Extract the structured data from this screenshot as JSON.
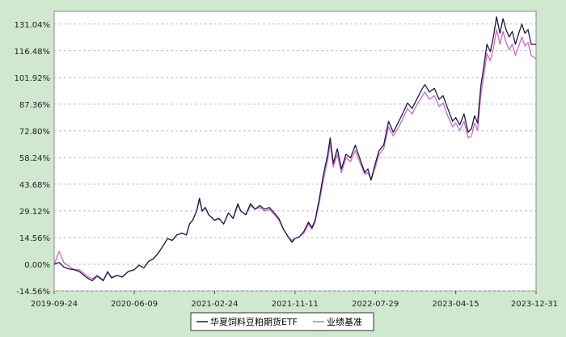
{
  "colors": {
    "background": "#cfe8cf",
    "plot_bg": "#ffffff",
    "grid": "#bdbdbd",
    "fund": "#1a1a40",
    "benchmark": "#cc66cc"
  },
  "chart_data": {
    "type": "line",
    "title": "",
    "xlabel": "",
    "ylabel": "",
    "grid": "horizontal",
    "legend_position": "bottom-right",
    "ylim": [
      -14.56,
      138
    ],
    "y_ticks": [
      "131.04%",
      "116.48%",
      "101.92%",
      "87.36%",
      "72.80%",
      "58.24%",
      "43.68%",
      "29.12%",
      "14.56%",
      "0.00%",
      "-14.56%"
    ],
    "y_tick_values": [
      131.04,
      116.48,
      101.92,
      87.36,
      72.8,
      58.24,
      43.68,
      29.12,
      14.56,
      0,
      -14.56
    ],
    "x_ticks": [
      "2019-09-24",
      "2020-06-09",
      "2021-02-24",
      "2021-11-11",
      "2022-07-29",
      "2023-04-15",
      "2023-12-31"
    ],
    "xlim": [
      "2019-09-24",
      "2023-12-31"
    ],
    "series": [
      {
        "name": "华夏饲料豆粕期货ETF",
        "color": "#1a1a40",
        "points": [
          [
            "2019-09-24",
            0.0
          ],
          [
            "2019-10-10",
            1.0
          ],
          [
            "2019-10-25",
            -1.5
          ],
          [
            "2019-11-10",
            -2.5
          ],
          [
            "2019-11-28",
            -3.0
          ],
          [
            "2019-12-15",
            -4.0
          ],
          [
            "2020-01-05",
            -7.0
          ],
          [
            "2020-01-25",
            -9.0
          ],
          [
            "2020-02-10",
            -6.5
          ],
          [
            "2020-03-01",
            -9.0
          ],
          [
            "2020-03-15",
            -4.0
          ],
          [
            "2020-03-28",
            -7.5
          ],
          [
            "2020-04-15",
            -6.0
          ],
          [
            "2020-05-01",
            -7.0
          ],
          [
            "2020-05-20",
            -4.0
          ],
          [
            "2020-06-09",
            -3.0
          ],
          [
            "2020-06-25",
            -0.5
          ],
          [
            "2020-07-10",
            -2.0
          ],
          [
            "2020-07-25",
            1.5
          ],
          [
            "2020-08-10",
            3.0
          ],
          [
            "2020-08-25",
            6.0
          ],
          [
            "2020-09-10",
            10.0
          ],
          [
            "2020-09-25",
            14.0
          ],
          [
            "2020-10-10",
            13.0
          ],
          [
            "2020-10-25",
            16.0
          ],
          [
            "2020-11-10",
            17.0
          ],
          [
            "2020-11-25",
            16.0
          ],
          [
            "2020-12-05",
            22.0
          ],
          [
            "2020-12-15",
            24.0
          ],
          [
            "2020-12-28",
            29.0
          ],
          [
            "2021-01-06",
            36.0
          ],
          [
            "2021-01-15",
            29.0
          ],
          [
            "2021-01-25",
            31.0
          ],
          [
            "2021-02-05",
            27.0
          ],
          [
            "2021-02-24",
            24.0
          ],
          [
            "2021-03-10",
            25.0
          ],
          [
            "2021-03-25",
            22.0
          ],
          [
            "2021-04-10",
            28.0
          ],
          [
            "2021-04-25",
            25.0
          ],
          [
            "2021-05-10",
            33.0
          ],
          [
            "2021-05-20",
            29.0
          ],
          [
            "2021-06-05",
            27.0
          ],
          [
            "2021-06-20",
            33.0
          ],
          [
            "2021-07-05",
            30.0
          ],
          [
            "2021-07-20",
            32.0
          ],
          [
            "2021-08-05",
            30.0
          ],
          [
            "2021-08-20",
            31.0
          ],
          [
            "2021-09-05",
            28.0
          ],
          [
            "2021-09-20",
            25.0
          ],
          [
            "2021-10-05",
            19.0
          ],
          [
            "2021-10-20",
            15.0
          ],
          [
            "2021-11-01",
            12.0
          ],
          [
            "2021-11-11",
            14.0
          ],
          [
            "2021-11-25",
            15.0
          ],
          [
            "2021-12-10",
            18.0
          ],
          [
            "2021-12-25",
            23.0
          ],
          [
            "2022-01-05",
            20.0
          ],
          [
            "2022-01-15",
            24.0
          ],
          [
            "2022-01-28",
            35.0
          ],
          [
            "2022-02-10",
            48.0
          ],
          [
            "2022-02-25",
            60.0
          ],
          [
            "2022-03-05",
            69.0
          ],
          [
            "2022-03-15",
            55.0
          ],
          [
            "2022-03-28",
            63.0
          ],
          [
            "2022-04-10",
            52.0
          ],
          [
            "2022-04-25",
            60.0
          ],
          [
            "2022-05-10",
            58.0
          ],
          [
            "2022-05-25",
            65.0
          ],
          [
            "2022-06-10",
            57.0
          ],
          [
            "2022-06-25",
            50.0
          ],
          [
            "2022-07-05",
            52.0
          ],
          [
            "2022-07-15",
            46.0
          ],
          [
            "2022-07-29",
            55.0
          ],
          [
            "2022-08-10",
            62.0
          ],
          [
            "2022-08-25",
            65.0
          ],
          [
            "2022-09-10",
            78.0
          ],
          [
            "2022-09-25",
            72.0
          ],
          [
            "2022-10-10",
            77.0
          ],
          [
            "2022-10-25",
            82.0
          ],
          [
            "2022-11-10",
            88.0
          ],
          [
            "2022-11-25",
            85.0
          ],
          [
            "2022-12-10",
            90.0
          ],
          [
            "2022-12-25",
            95.0
          ],
          [
            "2023-01-05",
            98.0
          ],
          [
            "2023-01-20",
            94.0
          ],
          [
            "2023-02-05",
            96.0
          ],
          [
            "2023-02-20",
            90.0
          ],
          [
            "2023-03-05",
            92.0
          ],
          [
            "2023-03-20",
            85.0
          ],
          [
            "2023-04-05",
            78.0
          ],
          [
            "2023-04-15",
            80.0
          ],
          [
            "2023-04-28",
            76.0
          ],
          [
            "2023-05-12",
            82.0
          ],
          [
            "2023-05-25",
            72.0
          ],
          [
            "2023-06-05",
            74.0
          ],
          [
            "2023-06-15",
            81.0
          ],
          [
            "2023-06-25",
            77.0
          ],
          [
            "2023-07-05",
            97.0
          ],
          [
            "2023-07-15",
            108.0
          ],
          [
            "2023-07-25",
            120.0
          ],
          [
            "2023-08-05",
            116.0
          ],
          [
            "2023-08-15",
            124.0
          ],
          [
            "2023-08-25",
            135.0
          ],
          [
            "2023-09-05",
            126.0
          ],
          [
            "2023-09-15",
            134.0
          ],
          [
            "2023-09-25",
            128.0
          ],
          [
            "2023-10-05",
            124.0
          ],
          [
            "2023-10-15",
            127.0
          ],
          [
            "2023-10-25",
            120.0
          ],
          [
            "2023-11-05",
            126.0
          ],
          [
            "2023-11-15",
            131.0
          ],
          [
            "2023-11-25",
            126.0
          ],
          [
            "2023-12-05",
            128.0
          ],
          [
            "2023-12-15",
            120.0
          ],
          [
            "2023-12-31",
            120.0
          ]
        ]
      },
      {
        "name": "业绩基准",
        "color": "#cc66cc",
        "points": [
          [
            "2019-09-24",
            0.0
          ],
          [
            "2019-10-10",
            7.0
          ],
          [
            "2019-10-25",
            1.0
          ],
          [
            "2019-11-10",
            -1.0
          ],
          [
            "2019-11-28",
            -3.0
          ],
          [
            "2019-12-15",
            -3.0
          ],
          [
            "2020-01-05",
            -6.0
          ],
          [
            "2020-01-25",
            -8.0
          ],
          [
            "2020-02-10",
            -6.0
          ],
          [
            "2020-03-01",
            -8.5
          ],
          [
            "2020-03-15",
            -4.5
          ],
          [
            "2020-03-28",
            -7.0
          ],
          [
            "2020-04-15",
            -6.0
          ],
          [
            "2020-05-01",
            -7.0
          ],
          [
            "2020-05-20",
            -4.0
          ],
          [
            "2020-06-09",
            -3.0
          ],
          [
            "2020-06-25",
            -0.5
          ],
          [
            "2020-07-10",
            -2.0
          ],
          [
            "2020-07-25",
            1.5
          ],
          [
            "2020-08-10",
            3.0
          ],
          [
            "2020-08-25",
            6.0
          ],
          [
            "2020-09-10",
            10.0
          ],
          [
            "2020-09-25",
            14.0
          ],
          [
            "2020-10-10",
            13.0
          ],
          [
            "2020-10-25",
            16.0
          ],
          [
            "2020-11-10",
            17.0
          ],
          [
            "2020-11-25",
            16.0
          ],
          [
            "2020-12-05",
            22.0
          ],
          [
            "2020-12-15",
            24.0
          ],
          [
            "2020-12-28",
            29.0
          ],
          [
            "2021-01-06",
            35.0
          ],
          [
            "2021-01-15",
            29.0
          ],
          [
            "2021-01-25",
            31.0
          ],
          [
            "2021-02-05",
            27.0
          ],
          [
            "2021-02-24",
            24.0
          ],
          [
            "2021-03-10",
            25.0
          ],
          [
            "2021-03-25",
            22.0
          ],
          [
            "2021-04-10",
            28.0
          ],
          [
            "2021-04-25",
            25.0
          ],
          [
            "2021-05-10",
            32.0
          ],
          [
            "2021-05-20",
            29.0
          ],
          [
            "2021-06-05",
            27.0
          ],
          [
            "2021-06-20",
            32.0
          ],
          [
            "2021-07-05",
            30.0
          ],
          [
            "2021-07-20",
            31.0
          ],
          [
            "2021-08-05",
            29.0
          ],
          [
            "2021-08-20",
            30.0
          ],
          [
            "2021-09-05",
            27.0
          ],
          [
            "2021-09-20",
            24.0
          ],
          [
            "2021-10-05",
            19.0
          ],
          [
            "2021-10-20",
            15.0
          ],
          [
            "2021-11-01",
            13.0
          ],
          [
            "2021-11-11",
            14.0
          ],
          [
            "2021-11-25",
            15.0
          ],
          [
            "2021-12-10",
            17.0
          ],
          [
            "2021-12-25",
            22.0
          ],
          [
            "2022-01-05",
            19.0
          ],
          [
            "2022-01-15",
            23.0
          ],
          [
            "2022-01-28",
            33.0
          ],
          [
            "2022-02-10",
            45.0
          ],
          [
            "2022-02-25",
            57.0
          ],
          [
            "2022-03-05",
            66.0
          ],
          [
            "2022-03-15",
            53.0
          ],
          [
            "2022-03-28",
            60.0
          ],
          [
            "2022-04-10",
            50.0
          ],
          [
            "2022-04-25",
            58.0
          ],
          [
            "2022-05-10",
            56.0
          ],
          [
            "2022-05-25",
            62.0
          ],
          [
            "2022-06-10",
            55.0
          ],
          [
            "2022-06-25",
            49.0
          ],
          [
            "2022-07-05",
            50.0
          ],
          [
            "2022-07-15",
            46.0
          ],
          [
            "2022-07-29",
            53.0
          ],
          [
            "2022-08-10",
            60.0
          ],
          [
            "2022-08-25",
            63.0
          ],
          [
            "2022-09-10",
            75.0
          ],
          [
            "2022-09-25",
            70.0
          ],
          [
            "2022-10-10",
            74.0
          ],
          [
            "2022-10-25",
            79.0
          ],
          [
            "2022-11-10",
            85.0
          ],
          [
            "2022-11-25",
            82.0
          ],
          [
            "2022-12-10",
            87.0
          ],
          [
            "2022-12-25",
            91.0
          ],
          [
            "2023-01-05",
            94.0
          ],
          [
            "2023-01-20",
            90.0
          ],
          [
            "2023-02-05",
            92.0
          ],
          [
            "2023-02-20",
            86.0
          ],
          [
            "2023-03-05",
            88.0
          ],
          [
            "2023-03-20",
            81.0
          ],
          [
            "2023-04-05",
            75.0
          ],
          [
            "2023-04-15",
            77.0
          ],
          [
            "2023-04-28",
            73.0
          ],
          [
            "2023-05-12",
            78.0
          ],
          [
            "2023-05-25",
            69.0
          ],
          [
            "2023-06-05",
            70.0
          ],
          [
            "2023-06-15",
            77.0
          ],
          [
            "2023-06-25",
            73.0
          ],
          [
            "2023-07-05",
            92.0
          ],
          [
            "2023-07-15",
            103.0
          ],
          [
            "2023-07-25",
            115.0
          ],
          [
            "2023-08-05",
            111.0
          ],
          [
            "2023-08-15",
            118.0
          ],
          [
            "2023-08-25",
            128.0
          ],
          [
            "2023-09-05",
            120.0
          ],
          [
            "2023-09-15",
            127.0
          ],
          [
            "2023-09-25",
            121.0
          ],
          [
            "2023-10-05",
            117.0
          ],
          [
            "2023-10-15",
            120.0
          ],
          [
            "2023-10-25",
            114.0
          ],
          [
            "2023-11-05",
            119.0
          ],
          [
            "2023-11-15",
            124.0
          ],
          [
            "2023-11-25",
            119.0
          ],
          [
            "2023-12-05",
            121.0
          ],
          [
            "2023-12-15",
            114.0
          ],
          [
            "2023-12-31",
            112.0
          ]
        ]
      }
    ]
  }
}
